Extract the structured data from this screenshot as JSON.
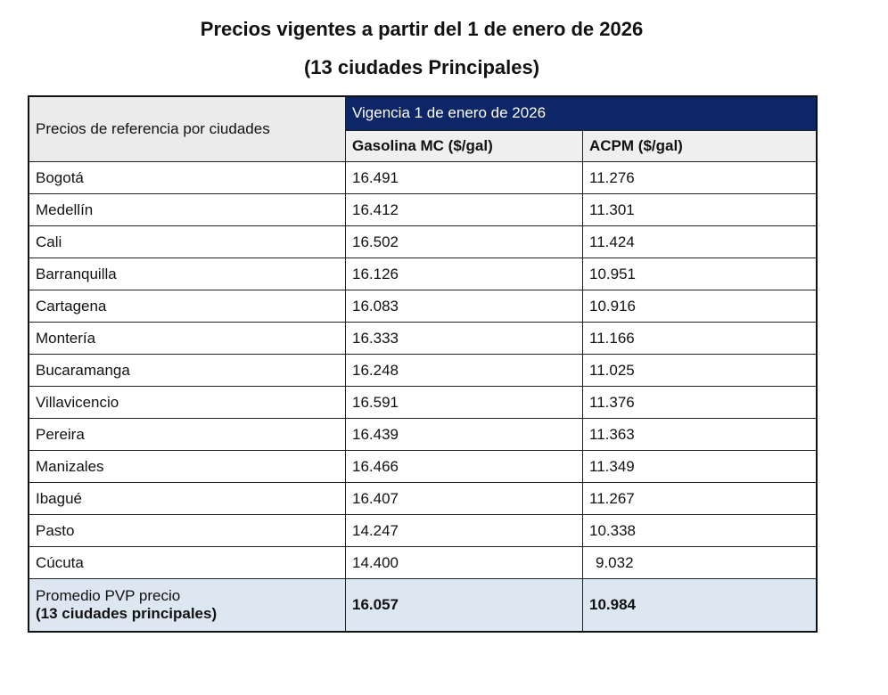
{
  "title": "Precios vigentes a partir del 1 de enero de 2026",
  "subtitle": "(13 ciudades Principales)",
  "table": {
    "corner_header": "Precios de referencia por ciudades",
    "group_header": "Vigencia 1 de enero de 2026",
    "columns": [
      "Gasolina MC ($/gal)",
      "ACPM ($/gal)"
    ],
    "header_color": "#0d2668",
    "rows": [
      {
        "city": "Bogotá",
        "gasolina": "16.491",
        "acpm": "11.276"
      },
      {
        "city": "Medellín",
        "gasolina": "16.412",
        "acpm": "11.301"
      },
      {
        "city": "Cali",
        "gasolina": "16.502",
        "acpm": "11.424"
      },
      {
        "city": "Barranquilla",
        "gasolina": "16.126",
        "acpm": "10.951"
      },
      {
        "city": "Cartagena",
        "gasolina": "16.083",
        "acpm": "10.916"
      },
      {
        "city": "Montería",
        "gasolina": "16.333",
        "acpm": "11.166"
      },
      {
        "city": "Bucaramanga",
        "gasolina": "16.248",
        "acpm": "11.025"
      },
      {
        "city": "Villavicencio",
        "gasolina": "16.591",
        "acpm": "11.376"
      },
      {
        "city": "Pereira",
        "gasolina": "16.439",
        "acpm": "11.363"
      },
      {
        "city": "Manizales",
        "gasolina": "16.466",
        "acpm": "11.349"
      },
      {
        "city": "Ibagué",
        "gasolina": "16.407",
        "acpm": "11.267"
      },
      {
        "city": "Pasto",
        "gasolina": "14.247",
        "acpm": "10.338"
      },
      {
        "city": "Cúcuta",
        "gasolina": "14.400",
        "acpm": "9.032"
      }
    ],
    "footer": {
      "label_line1": "Promedio PVP precio",
      "label_line2": "(13 ciudades principales)",
      "gasolina": "16.057",
      "acpm": "10.984"
    }
  }
}
